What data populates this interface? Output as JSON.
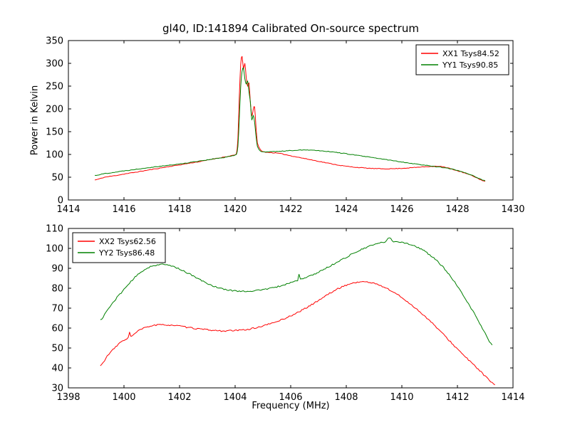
{
  "chart_data": [
    {
      "type": "line",
      "title": "gl40, ID:141894 Calibrated On-source spectrum",
      "xlabel": "",
      "ylabel": "Power in Kelvin",
      "xlim": [
        1414,
        1430
      ],
      "ylim": [
        0,
        350
      ],
      "xticks": [
        1414,
        1416,
        1418,
        1420,
        1422,
        1424,
        1426,
        1428,
        1430
      ],
      "yticks": [
        0,
        50,
        100,
        150,
        200,
        250,
        300,
        350
      ],
      "grid": false,
      "legend_position": "upper-right",
      "series": [
        {
          "name": "XX1 Tsys84.52",
          "color": "#ff0000",
          "noise": 0.7,
          "seed": 11,
          "points": [
            [
              1414.95,
              44
            ],
            [
              1415.3,
              50
            ],
            [
              1416,
              57
            ],
            [
              1417,
              67
            ],
            [
              1418,
              77
            ],
            [
              1418.8,
              85
            ],
            [
              1419.4,
              92
            ],
            [
              1419.8,
              96
            ],
            [
              1420.0,
              99
            ],
            [
              1420.05,
              103
            ],
            [
              1420.1,
              135
            ],
            [
              1420.15,
              225
            ],
            [
              1420.2,
              298
            ],
            [
              1420.25,
              315
            ],
            [
              1420.3,
              287
            ],
            [
              1420.35,
              300
            ],
            [
              1420.4,
              268
            ],
            [
              1420.45,
              250
            ],
            [
              1420.5,
              257
            ],
            [
              1420.55,
              212
            ],
            [
              1420.6,
              185
            ],
            [
              1420.65,
              198
            ],
            [
              1420.7,
              205
            ],
            [
              1420.75,
              160
            ],
            [
              1420.8,
              126
            ],
            [
              1420.9,
              111
            ],
            [
              1421,
              106
            ],
            [
              1421.3,
              104
            ],
            [
              1421.6,
              102
            ],
            [
              1422,
              97
            ],
            [
              1422.5,
              91
            ],
            [
              1423,
              85
            ],
            [
              1423.5,
              79
            ],
            [
              1424,
              74
            ],
            [
              1424.5,
              71
            ],
            [
              1425,
              69
            ],
            [
              1425.5,
              68.5
            ],
            [
              1426,
              69.5
            ],
            [
              1426.5,
              71.5
            ],
            [
              1427,
              73.5
            ],
            [
              1427.3,
              74
            ],
            [
              1427.6,
              71
            ],
            [
              1428,
              64
            ],
            [
              1428.5,
              54
            ],
            [
              1429,
              41
            ]
          ]
        },
        {
          "name": "YY1 Tsys90.85",
          "color": "#008000",
          "noise": 0.7,
          "seed": 22,
          "points": [
            [
              1414.95,
              54
            ],
            [
              1415.3,
              58
            ],
            [
              1416,
              64
            ],
            [
              1417,
              72
            ],
            [
              1418,
              79
            ],
            [
              1419,
              88
            ],
            [
              1419.6,
              93
            ],
            [
              1419.9,
              97
            ],
            [
              1420.05,
              101
            ],
            [
              1420.1,
              118
            ],
            [
              1420.15,
              178
            ],
            [
              1420.2,
              248
            ],
            [
              1420.25,
              283
            ],
            [
              1420.3,
              290
            ],
            [
              1420.35,
              266
            ],
            [
              1420.4,
              254
            ],
            [
              1420.45,
              261
            ],
            [
              1420.5,
              236
            ],
            [
              1420.55,
              214
            ],
            [
              1420.6,
              176
            ],
            [
              1420.65,
              186
            ],
            [
              1420.7,
              171
            ],
            [
              1420.75,
              141
            ],
            [
              1420.8,
              118
            ],
            [
              1420.9,
              108
            ],
            [
              1421,
              105.5
            ],
            [
              1421.5,
              106.5
            ],
            [
              1422,
              108.5
            ],
            [
              1422.5,
              110
            ],
            [
              1423,
              108.5
            ],
            [
              1423.5,
              105.5
            ],
            [
              1424,
              101.5
            ],
            [
              1424.5,
              97
            ],
            [
              1425,
              92.5
            ],
            [
              1425.5,
              88
            ],
            [
              1426,
              83.5
            ],
            [
              1426.5,
              79
            ],
            [
              1427,
              75
            ],
            [
              1427.5,
              71
            ],
            [
              1428,
              65
            ],
            [
              1428.5,
              55
            ],
            [
              1429,
              42
            ]
          ]
        }
      ]
    },
    {
      "type": "line",
      "title": "",
      "xlabel": "Frequency (MHz)",
      "ylabel": "",
      "xlim": [
        1398,
        1414
      ],
      "ylim": [
        30,
        110
      ],
      "xticks": [
        1398,
        1400,
        1402,
        1404,
        1406,
        1408,
        1410,
        1412,
        1414
      ],
      "yticks": [
        30,
        40,
        50,
        60,
        70,
        80,
        90,
        100,
        110
      ],
      "grid": false,
      "legend_position": "upper-left",
      "series": [
        {
          "name": "XX2 Tsys62.56",
          "color": "#ff0000",
          "noise": 0.35,
          "seed": 33,
          "points": [
            [
              1399.15,
              41
            ],
            [
              1399.4,
              46
            ],
            [
              1399.7,
              50.5
            ],
            [
              1400.0,
              54
            ],
            [
              1400.15,
              55
            ],
            [
              1400.2,
              57.8
            ],
            [
              1400.25,
              55.8
            ],
            [
              1400.5,
              58.5
            ],
            [
              1400.8,
              60.4
            ],
            [
              1401.1,
              61.4
            ],
            [
              1401.5,
              61.6
            ],
            [
              1401.9,
              61.2
            ],
            [
              1402.3,
              60.3
            ],
            [
              1402.7,
              59.6
            ],
            [
              1403.1,
              59.0
            ],
            [
              1403.5,
              58.6
            ],
            [
              1403.9,
              58.7
            ],
            [
              1404.3,
              59.1
            ],
            [
              1404.7,
              60.0
            ],
            [
              1405.1,
              61.5
            ],
            [
              1405.5,
              63.3
            ],
            [
              1405.9,
              65.5
            ],
            [
              1406.3,
              68.2
            ],
            [
              1406.7,
              71.3
            ],
            [
              1407.1,
              74.8
            ],
            [
              1407.5,
              78.2
            ],
            [
              1407.9,
              81.0
            ],
            [
              1408.2,
              82.4
            ],
            [
              1408.5,
              83.2
            ],
            [
              1408.8,
              83.0
            ],
            [
              1409.1,
              82.0
            ],
            [
              1409.4,
              80.3
            ],
            [
              1409.7,
              78.0
            ],
            [
              1410.0,
              75.2
            ],
            [
              1410.4,
              71.0
            ],
            [
              1410.8,
              66.3
            ],
            [
              1411.2,
              61.0
            ],
            [
              1411.6,
              55.3
            ],
            [
              1412.0,
              49.5
            ],
            [
              1412.4,
              44.0
            ],
            [
              1412.8,
              38.8
            ],
            [
              1413.1,
              34.5
            ],
            [
              1413.35,
              31.5
            ]
          ]
        },
        {
          "name": "YY2 Tsys86.48",
          "color": "#008000",
          "noise": 0.35,
          "seed": 44,
          "points": [
            [
              1399.15,
              64
            ],
            [
              1399.4,
              69
            ],
            [
              1399.7,
              74.5
            ],
            [
              1400.0,
              79.5
            ],
            [
              1400.4,
              85.5
            ],
            [
              1400.8,
              89.8
            ],
            [
              1401.1,
              91.4
            ],
            [
              1401.4,
              91.9
            ],
            [
              1401.7,
              91.2
            ],
            [
              1402.0,
              89.6
            ],
            [
              1402.4,
              86.8
            ],
            [
              1402.8,
              83.8
            ],
            [
              1403.2,
              81.2
            ],
            [
              1403.6,
              79.5
            ],
            [
              1404.0,
              78.7
            ],
            [
              1404.4,
              78.5
            ],
            [
              1404.8,
              78.9
            ],
            [
              1405.2,
              79.8
            ],
            [
              1405.6,
              81.0
            ],
            [
              1406.0,
              82.8
            ],
            [
              1406.25,
              84.0
            ],
            [
              1406.3,
              86.8
            ],
            [
              1406.35,
              84.6
            ],
            [
              1406.7,
              86.2
            ],
            [
              1407.1,
              88.8
            ],
            [
              1407.5,
              91.8
            ],
            [
              1407.9,
              94.8
            ],
            [
              1408.3,
              97.8
            ],
            [
              1408.7,
              100.3
            ],
            [
              1409.1,
              102.3
            ],
            [
              1409.4,
              103.3
            ],
            [
              1409.55,
              105.2
            ],
            [
              1409.7,
              103.5
            ],
            [
              1409.9,
              103.3
            ],
            [
              1410.2,
              102.4
            ],
            [
              1410.6,
              100.3
            ],
            [
              1411.0,
              96.8
            ],
            [
              1411.4,
              91.8
            ],
            [
              1411.8,
              85.0
            ],
            [
              1412.2,
              76.5
            ],
            [
              1412.6,
              67.5
            ],
            [
              1413.0,
              57.5
            ],
            [
              1413.25,
              51.5
            ]
          ]
        }
      ]
    }
  ]
}
